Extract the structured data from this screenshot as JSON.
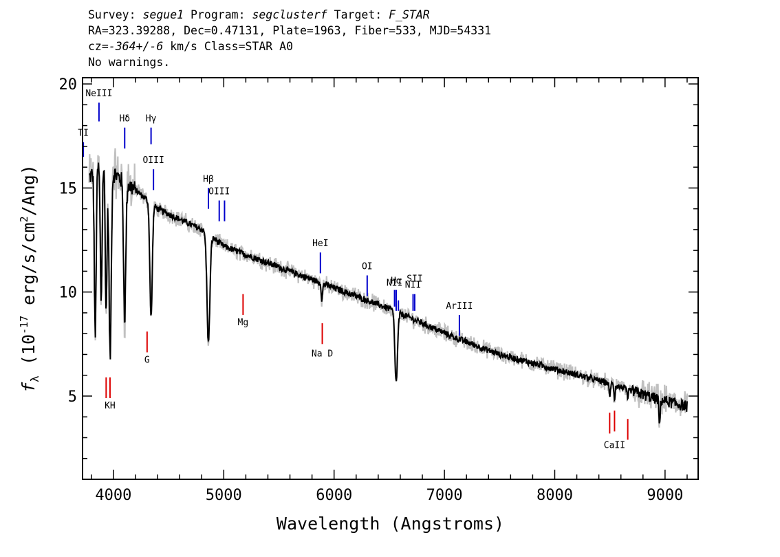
{
  "header": {
    "survey_label": "Survey: ",
    "survey": "segue1",
    "program_label": " Program: ",
    "program": "segclusterf",
    "target_label": " Target: ",
    "target": "F_STAR",
    "coords": "RA=323.39288, Dec=0.47131, Plate=1963, Fiber=533, MJD=54331",
    "cz_label": "cz=",
    "cz": "-364+/-6",
    "cz_units": " km/s Class=STAR A0",
    "warnings": "No warnings."
  },
  "chart_data": {
    "type": "line",
    "xlabel": "Wavelength (Angstroms)",
    "ylabel_prefix": "f",
    "ylabel_sub": "λ",
    "ylabel_main": " (10",
    "ylabel_exp": "-17",
    "ylabel_units": " erg/s/cm",
    "ylabel_exp2": "2",
    "ylabel_end": "/Ang)",
    "xlim": [
      3720,
      9300
    ],
    "ylim": [
      1,
      20.3
    ],
    "x_ticks": [
      4000,
      5000,
      6000,
      7000,
      8000,
      9000
    ],
    "x_tick_labels": [
      "4000",
      "5000",
      "6000",
      "7000",
      "8000",
      "9000"
    ],
    "y_ticks": [
      5,
      10,
      15,
      20
    ],
    "y_tick_labels": [
      "5",
      "10",
      "15",
      "20"
    ],
    "colors": {
      "flux": "#000000",
      "noise": "#c0c0c0",
      "emission": "#0000cc",
      "absorption": "#dd0000"
    },
    "continuum_nodes": [
      [
        3780,
        15.5
      ],
      [
        3900,
        16.2
      ],
      [
        4050,
        15.5
      ],
      [
        4200,
        14.9
      ],
      [
        4400,
        14.0
      ],
      [
        4600,
        13.5
      ],
      [
        4800,
        13.0
      ],
      [
        5000,
        12.2
      ],
      [
        5300,
        11.6
      ],
      [
        5600,
        11.0
      ],
      [
        5900,
        10.4
      ],
      [
        6200,
        9.8
      ],
      [
        6500,
        9.2
      ],
      [
        6800,
        8.5
      ],
      [
        7100,
        7.8
      ],
      [
        7500,
        7.0
      ],
      [
        8000,
        6.3
      ],
      [
        8500,
        5.6
      ],
      [
        8900,
        4.9
      ],
      [
        9200,
        4.5
      ]
    ],
    "absorption_features": [
      {
        "x": 3835,
        "depth": 8,
        "w": 8
      },
      {
        "x": 3889,
        "depth": 6.5,
        "w": 8
      },
      {
        "x": 3934,
        "depth": 7,
        "w": 8
      },
      {
        "x": 3970,
        "depth": 9,
        "w": 10
      },
      {
        "x": 4102,
        "depth": 6.5,
        "w": 10
      },
      {
        "x": 4341,
        "depth": 5.5,
        "w": 11
      },
      {
        "x": 4861,
        "depth": 5.2,
        "w": 13
      },
      {
        "x": 5890,
        "depth": 0.8,
        "w": 6
      },
      {
        "x": 6563,
        "depth": 3.4,
        "w": 12
      },
      {
        "x": 8498,
        "depth": 0.7,
        "w": 5
      },
      {
        "x": 8542,
        "depth": 0.7,
        "w": 5
      },
      {
        "x": 8662,
        "depth": 0.6,
        "w": 5
      },
      {
        "x": 8950,
        "depth": 1.2,
        "w": 6
      }
    ],
    "emission_lines": [
      {
        "label": "TI",
        "x": 3727,
        "y0": 16.5,
        "y1": 17.2,
        "ly": 17.5
      },
      {
        "label": "NeIII",
        "x": 3869,
        "y0": 18.2,
        "y1": 19.1,
        "ly": 19.4
      },
      {
        "label": "Hδ",
        "x": 4102,
        "y0": 16.9,
        "y1": 17.9,
        "ly": 18.2
      },
      {
        "label": "Hγ",
        "x": 4341,
        "y0": 17.1,
        "y1": 17.9,
        "ly": 18.2
      },
      {
        "label": "OIII",
        "x": 4363,
        "y0": 14.9,
        "y1": 15.9,
        "ly": 16.2
      },
      {
        "label": "Hβ",
        "x": 4861,
        "y0": 14.0,
        "y1": 15.0,
        "ly": 15.3
      },
      {
        "label": "OIII",
        "x": 4959,
        "y0": 13.4,
        "y1": 14.4,
        "ly": 14.7
      },
      {
        "label": "",
        "x": 5007,
        "y0": 13.4,
        "y1": 14.4,
        "ly": 14.7
      },
      {
        "label": "HeI",
        "x": 5876,
        "y0": 10.9,
        "y1": 11.9,
        "ly": 12.2
      },
      {
        "label": "OI",
        "x": 6300,
        "y0": 9.8,
        "y1": 10.8,
        "ly": 11.1
      },
      {
        "label": "NII",
        "x": 6548,
        "y0": 9.3,
        "y1": 10.1,
        "ly": 10.3
      },
      {
        "label": "Hα",
        "x": 6563,
        "y0": 9.1,
        "y1": 10.1,
        "ly": 10.4
      },
      {
        "label": "",
        "x": 6583,
        "y0": 9.1,
        "y1": 9.6,
        "ly": 9.9
      },
      {
        "label": "NII",
        "x": 6716,
        "y0": 9.1,
        "y1": 9.9,
        "ly": 10.2
      },
      {
        "label": "SII",
        "x": 6731,
        "y0": 9.1,
        "y1": 9.9,
        "ly": 10.5
      },
      {
        "label": "ArIII",
        "x": 7136,
        "y0": 7.9,
        "y1": 8.9,
        "ly": 9.2
      }
    ],
    "absorption_lines": [
      {
        "label": "",
        "x": 3934,
        "y0": 4.9,
        "y1": 5.9,
        "ly": 0
      },
      {
        "label": "KH",
        "x": 3969,
        "y0": 4.9,
        "y1": 5.9,
        "ly": 4.4
      },
      {
        "label": "G",
        "x": 4305,
        "y0": 7.1,
        "y1": 8.1,
        "ly": 6.6
      },
      {
        "label": "Mg",
        "x": 5175,
        "y0": 8.9,
        "y1": 9.9,
        "ly": 8.4
      },
      {
        "label": "Na D",
        "x": 5893,
        "y0": 7.5,
        "y1": 8.5,
        "ly": 6.9
      },
      {
        "label": "",
        "x": 8498,
        "y0": 3.2,
        "y1": 4.2,
        "ly": 0
      },
      {
        "label": "CaII",
        "x": 8542,
        "y0": 3.3,
        "y1": 4.3,
        "ly": 2.5
      },
      {
        "label": "",
        "x": 8662,
        "y0": 2.9,
        "y1": 3.9,
        "ly": 0
      }
    ]
  }
}
